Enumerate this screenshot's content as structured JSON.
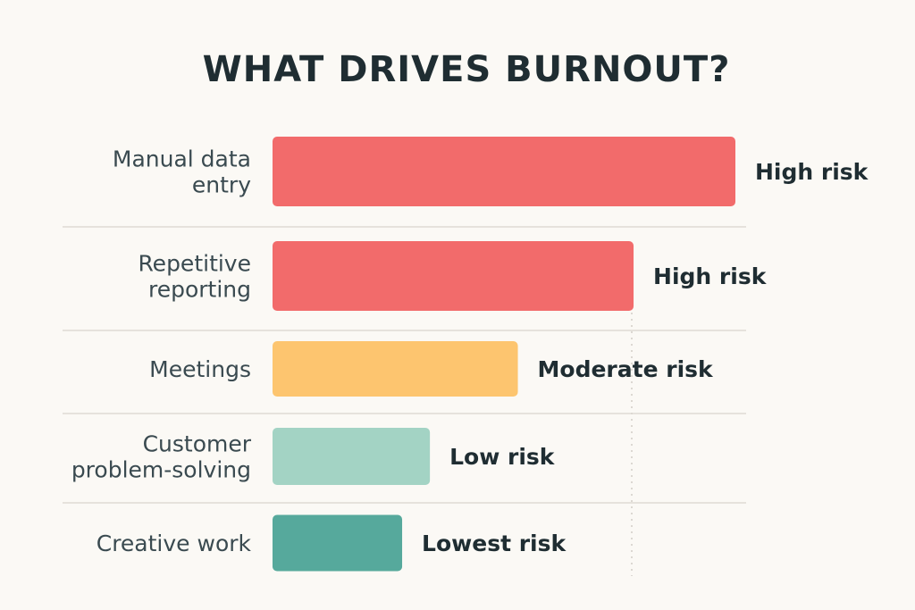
{
  "chart_data": {
    "type": "bar",
    "orientation": "horizontal",
    "title": "WHAT DRIVES BURNOUT?",
    "categories": [
      [
        "Manual data",
        "entry"
      ],
      [
        "Repetitive",
        "reporting"
      ],
      [
        "Meetings"
      ],
      [
        "Customer",
        "problem-solving"
      ],
      [
        "Creative work"
      ]
    ],
    "values": [
      100,
      78,
      53,
      34,
      28
    ],
    "value_labels": [
      "High risk",
      "High risk",
      "Moderate risk",
      "Low risk",
      "Lowest risk"
    ],
    "colors": [
      "#f26b6b",
      "#f26b6b",
      "#fdc56f",
      "#a3d3c4",
      "#56a99c"
    ],
    "xlim": [
      0,
      100
    ],
    "grid": false,
    "legend": "none"
  }
}
